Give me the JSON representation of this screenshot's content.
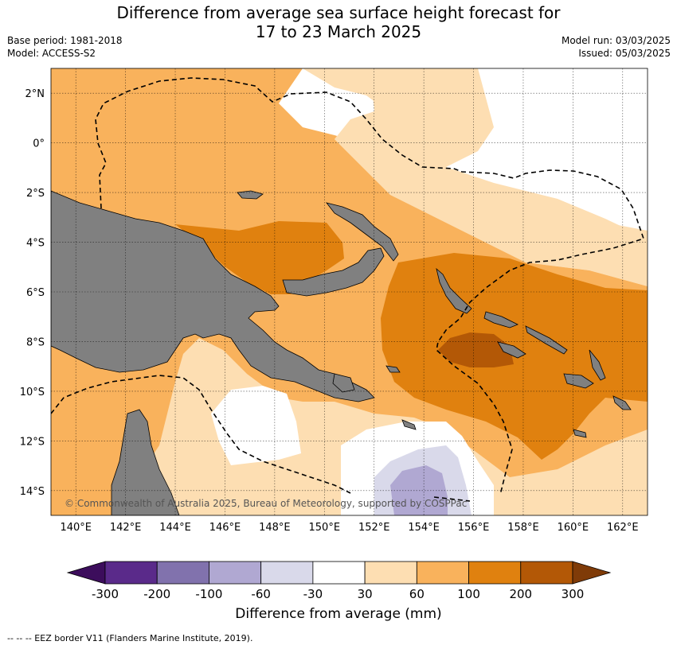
{
  "title_line1": "Difference from average sea surface height forecast for",
  "title_line2": "17 to 23 March 2025",
  "meta": {
    "base_period": "Base period: 1981-2018",
    "model": "Model: ACCESS-S2",
    "model_run": "Model run: 03/03/2025",
    "issued": "Issued: 05/03/2025"
  },
  "map": {
    "lon_range": [
      139,
      163
    ],
    "lat_range": [
      -15,
      3
    ],
    "lon_ticks": [
      "140°E",
      "142°E",
      "144°E",
      "146°E",
      "148°E",
      "150°E",
      "152°E",
      "154°E",
      "156°E",
      "158°E",
      "160°E",
      "162°E"
    ],
    "lat_ticks": [
      "2°N",
      "0°",
      "2°S",
      "4°S",
      "6°S",
      "8°S",
      "10°S",
      "12°S",
      "14°S"
    ],
    "gridlines": true,
    "copyright": "© Commonwealth of Australia 2025, Bureau of Meteorology, supported by COSPPac"
  },
  "colorbar": {
    "ticks": [
      "-300",
      "-200",
      "-100",
      "-60",
      "-30",
      "30",
      "60",
      "100",
      "200",
      "300"
    ],
    "colors": [
      "#3c0d5c",
      "#5a2a8a",
      "#8172ad",
      "#b0a8d2",
      "#d9d9ea",
      "#ffffff",
      "#fddeb2",
      "#f9b25c",
      "#e0810f",
      "#b35806",
      "#7f3b08"
    ],
    "label": "Difference from average (mm)"
  },
  "footer": "--  --  -- EEZ border V11 (Flanders Marine Institute, 2019)."
}
